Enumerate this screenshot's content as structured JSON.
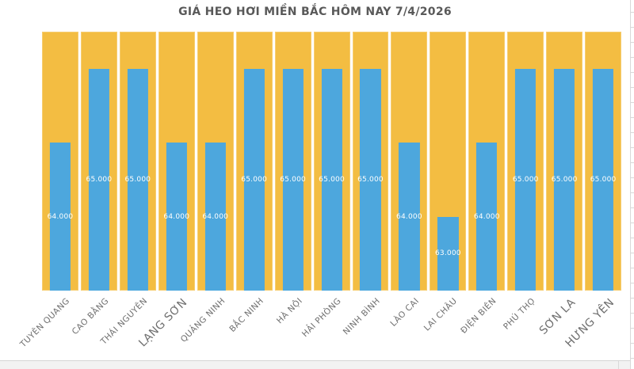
{
  "chart_data": {
    "type": "bar",
    "title": "GIÁ HEO HƠI MIỀN BẮC HÔM NAY 7/4/2026",
    "categories": [
      "TUYÊN QUANG",
      "CAO BẰNG",
      "THÁI NGUYÊN",
      "LẠNG SƠN",
      "QUẢNG NINH",
      "BẮC NINH",
      "HÀ NỘI",
      "HẢI PHÒNG",
      "NINH BÌNH",
      "LÀO CAI",
      "LAI CHÂU",
      "ĐIỆN BIÊN",
      "PHÚ THỌ",
      "SƠN LA",
      "HƯNG YÊN"
    ],
    "values": [
      64000,
      65000,
      65000,
      64000,
      64000,
      65000,
      65000,
      65000,
      65000,
      64000,
      63000,
      64000,
      65000,
      65000,
      65000
    ],
    "value_labels": [
      "64.000",
      "65.000",
      "65.000",
      "64.000",
      "64.000",
      "65.000",
      "65.000",
      "65.000",
      "65.000",
      "64.000",
      "63.000",
      "64.000",
      "65.000",
      "65.000",
      "65.000"
    ],
    "ylim": [
      62000,
      65500
    ],
    "xlabel": "",
    "ylabel": "",
    "legend": "none",
    "gridlines": false,
    "x_label_rotation": -45,
    "x_label_large_indices": [
      3,
      13,
      14
    ],
    "bar_color": "#4DA7DD",
    "track_color": "#F3BD42",
    "title_color": "#595959",
    "label_color": "#6E6E6E",
    "data_label_color": "#FFFFFF"
  }
}
